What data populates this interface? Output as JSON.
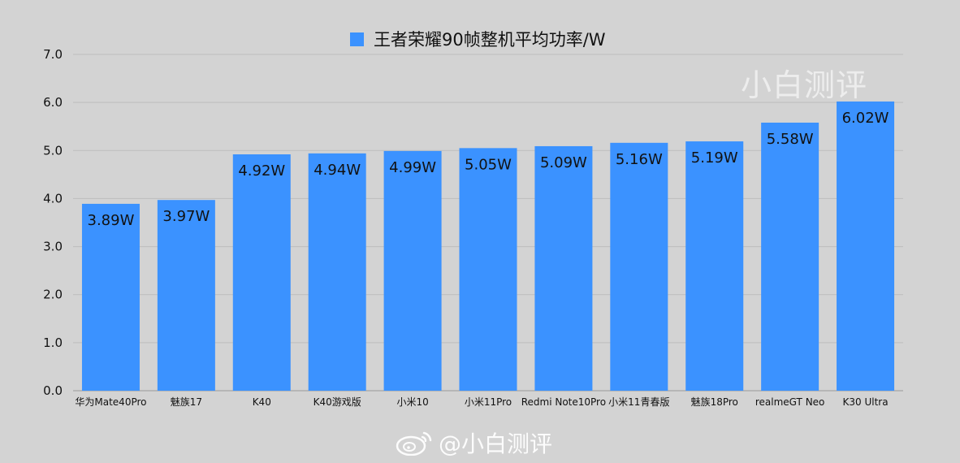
{
  "colors": {
    "background": "#d3d3d3",
    "bar": "#3b92ff",
    "grid": "#bdbdbd",
    "text": "#111111",
    "watermark": "#ffffff"
  },
  "watermark": {
    "top_text": "小白测评",
    "bottom_text": "@小白测评",
    "bottom_icon": "weibo-icon"
  },
  "chart_data": {
    "type": "bar",
    "title": "",
    "xlabel": "",
    "ylabel": "",
    "categories": [
      "华为Mate40Pro",
      "魅族17",
      "K40",
      "K40游戏版",
      "小米10",
      "小米11Pro",
      "Redmi Note10Pro",
      "小米11青春版",
      "魅族18Pro",
      "realmeGT Neo",
      "K30 Ultra"
    ],
    "series": [
      {
        "name": "王者荣耀90帧整机平均功率/W",
        "values": [
          3.89,
          3.97,
          4.92,
          4.94,
          4.99,
          5.05,
          5.09,
          5.16,
          5.19,
          5.58,
          6.02
        ],
        "data_labels": [
          "3.89W",
          "3.97W",
          "4.92W",
          "4.94W",
          "4.99W",
          "5.05W",
          "5.09W",
          "5.16W",
          "5.19W",
          "5.58W",
          "6.02W"
        ]
      }
    ],
    "ylim": [
      0,
      7
    ],
    "yticks": [
      "0.0",
      "1.0",
      "2.0",
      "3.0",
      "4.0",
      "5.0",
      "6.0",
      "7.0"
    ],
    "grid": true,
    "legend": "top-center"
  }
}
